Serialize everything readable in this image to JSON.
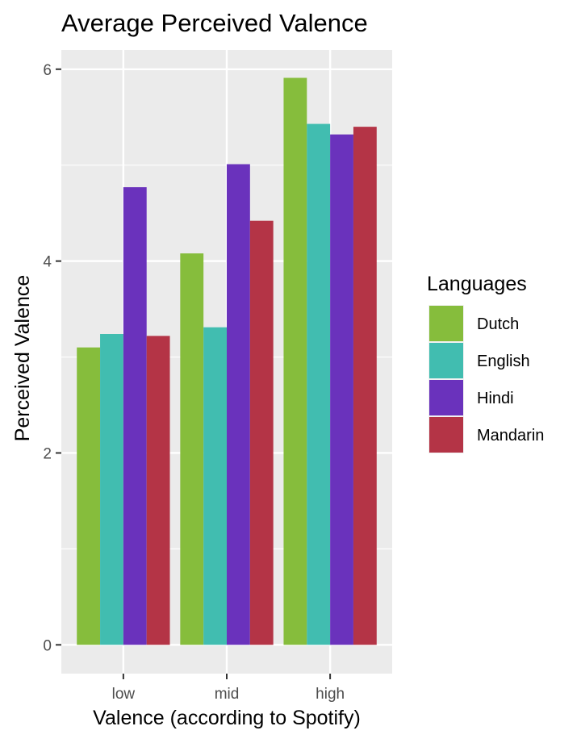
{
  "chart_data": {
    "type": "bar",
    "title": "Average Perceived Valence",
    "xlabel": "Valence (according to Spotify)",
    "ylabel": "Perceived Valence",
    "categories": [
      "low",
      "mid",
      "high"
    ],
    "y_ticks": [
      0,
      2,
      4,
      6
    ],
    "ylim": [
      -0.3,
      6.2
    ],
    "grid": true,
    "legend": {
      "title": "Languages",
      "position": "right"
    },
    "series": [
      {
        "name": "Dutch",
        "color": "#86bd3c",
        "values": [
          3.1,
          4.08,
          5.91
        ]
      },
      {
        "name": "English",
        "color": "#41bdb0",
        "values": [
          3.24,
          3.31,
          5.43
        ]
      },
      {
        "name": "Hindi",
        "color": "#6a32bc",
        "values": [
          4.77,
          5.01,
          5.32
        ]
      },
      {
        "name": "Mandarin",
        "color": "#b43446",
        "values": [
          3.22,
          4.42,
          5.4
        ]
      }
    ]
  }
}
